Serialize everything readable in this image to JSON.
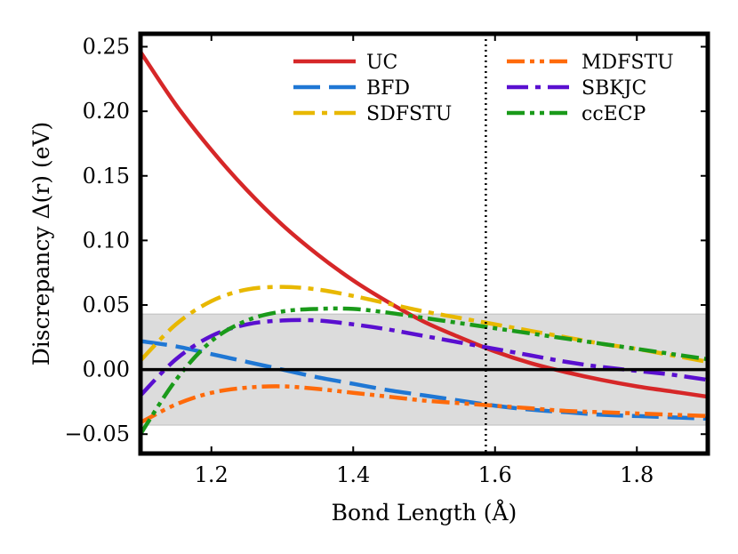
{
  "chart_data": {
    "type": "line",
    "xlabel": "Bond Length (Å)",
    "ylabel": "Discrepancy Δ(r) (eV)",
    "xlim": [
      1.1,
      1.9
    ],
    "ylim": [
      -0.065,
      0.26
    ],
    "xticks": [
      1.2,
      1.4,
      1.6,
      1.8
    ],
    "xtick_labels": [
      "1.2",
      "1.4",
      "1.6",
      "1.8"
    ],
    "yticks": [
      -0.05,
      0.0,
      0.05,
      0.1,
      0.15,
      0.2,
      0.25
    ],
    "ytick_labels": [
      "−0.05",
      "0.00",
      "0.05",
      "0.10",
      "0.15",
      "0.20",
      "0.25"
    ],
    "shaded_band": [
      -0.043,
      0.043
    ],
    "zero_line": 0.0,
    "vertical_line_x": 1.587,
    "grid": false,
    "legend_position": "top-right",
    "series": [
      {
        "name": "UC",
        "color": "#d62728",
        "dash": "solid",
        "x": [
          1.1,
          1.15,
          1.2,
          1.25,
          1.3,
          1.35,
          1.4,
          1.45,
          1.5,
          1.55,
          1.6,
          1.65,
          1.7,
          1.75,
          1.8,
          1.85,
          1.9
        ],
        "values": [
          0.246,
          0.205,
          0.17,
          0.139,
          0.112,
          0.089,
          0.069,
          0.052,
          0.037,
          0.025,
          0.014,
          0.005,
          -0.002,
          -0.008,
          -0.013,
          -0.017,
          -0.021
        ]
      },
      {
        "name": "BFD",
        "color": "#1f77d4",
        "dash": "long-dash",
        "x": [
          1.1,
          1.15,
          1.2,
          1.25,
          1.3,
          1.35,
          1.4,
          1.45,
          1.5,
          1.55,
          1.6,
          1.65,
          1.7,
          1.75,
          1.8,
          1.85,
          1.9
        ],
        "values": [
          0.022,
          0.018,
          0.012,
          0.006,
          0.0,
          -0.006,
          -0.011,
          -0.016,
          -0.02,
          -0.024,
          -0.028,
          -0.031,
          -0.033,
          -0.035,
          -0.036,
          -0.037,
          -0.038
        ]
      },
      {
        "name": "SDFSTU",
        "color": "#e8b800",
        "dash": "dash-dot",
        "x": [
          1.1,
          1.15,
          1.2,
          1.25,
          1.3,
          1.35,
          1.4,
          1.45,
          1.5,
          1.55,
          1.6,
          1.65,
          1.7,
          1.75,
          1.8,
          1.85,
          1.9
        ],
        "values": [
          0.007,
          0.035,
          0.053,
          0.062,
          0.064,
          0.062,
          0.057,
          0.051,
          0.045,
          0.04,
          0.035,
          0.03,
          0.025,
          0.02,
          0.016,
          0.011,
          0.006
        ]
      },
      {
        "name": "MDFSTU",
        "color": "#ff6a0a",
        "dash": "dash-dot-dot",
        "x": [
          1.1,
          1.15,
          1.2,
          1.25,
          1.3,
          1.35,
          1.4,
          1.45,
          1.5,
          1.55,
          1.6,
          1.65,
          1.7,
          1.75,
          1.8,
          1.85,
          1.9
        ],
        "values": [
          -0.041,
          -0.027,
          -0.018,
          -0.014,
          -0.013,
          -0.015,
          -0.018,
          -0.021,
          -0.024,
          -0.026,
          -0.028,
          -0.03,
          -0.032,
          -0.033,
          -0.034,
          -0.035,
          -0.036
        ]
      },
      {
        "name": "SBKJC",
        "color": "#5a0fd0",
        "dash": "dash-dot",
        "x": [
          1.1,
          1.15,
          1.2,
          1.25,
          1.3,
          1.35,
          1.4,
          1.45,
          1.5,
          1.55,
          1.6,
          1.65,
          1.7,
          1.75,
          1.8,
          1.85,
          1.9
        ],
        "values": [
          -0.02,
          0.008,
          0.026,
          0.035,
          0.038,
          0.038,
          0.035,
          0.031,
          0.026,
          0.021,
          0.016,
          0.011,
          0.006,
          0.002,
          -0.001,
          -0.004,
          -0.008
        ]
      },
      {
        "name": "ccECP",
        "color": "#1a9a1a",
        "dash": "dash-dot-dot",
        "x": [
          1.1,
          1.15,
          1.2,
          1.25,
          1.3,
          1.35,
          1.4,
          1.45,
          1.5,
          1.55,
          1.6,
          1.65,
          1.7,
          1.75,
          1.8,
          1.85,
          1.9
        ],
        "values": [
          -0.05,
          -0.008,
          0.022,
          0.038,
          0.045,
          0.047,
          0.047,
          0.044,
          0.04,
          0.036,
          0.032,
          0.028,
          0.024,
          0.02,
          0.016,
          0.012,
          0.008
        ]
      }
    ]
  }
}
